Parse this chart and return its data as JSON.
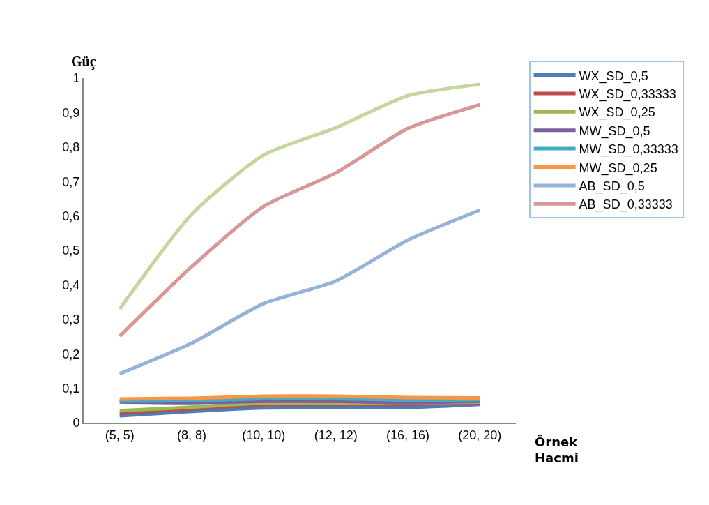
{
  "chart_data": {
    "type": "line",
    "xlabel": "Örnek Hacmi",
    "ylabel": "Güç",
    "categories": [
      "(5, 5)",
      "(8, 8)",
      "(10, 10)",
      "(12, 12)",
      "(16, 16)",
      "(20, 20)"
    ],
    "ylim": [
      0,
      1
    ],
    "yticks": [
      0,
      {
        "value": 0.1,
        "label": "0,1"
      },
      {
        "value": 0.2,
        "label": "0,2"
      },
      {
        "value": 0.3,
        "label": "0,3"
      },
      {
        "value": 0.4,
        "label": "0,4"
      },
      {
        "value": 0.5,
        "label": "0,5"
      },
      {
        "value": 0.6,
        "label": "0,6"
      },
      {
        "value": 0.7,
        "label": "0,7"
      },
      {
        "value": 0.8,
        "label": "0,8"
      },
      {
        "value": 0.9,
        "label": "0,9"
      },
      1
    ],
    "grid": false,
    "legend": "right",
    "marker": "none",
    "line_style": "solid",
    "series": [
      {
        "name": "WX_SD_0,5",
        "color": "#4a7ebb",
        "values": [
          0.02,
          0.033,
          0.043,
          0.044,
          0.044,
          0.053
        ]
      },
      {
        "name": "WX_SD_0,33333",
        "color": "#be4b48",
        "values": [
          0.028,
          0.04,
          0.052,
          0.053,
          0.053,
          0.058
        ]
      },
      {
        "name": "WX_SD_0,25",
        "color": "#98b954",
        "values": [
          0.035,
          0.045,
          0.057,
          0.056,
          0.057,
          0.06
        ]
      },
      {
        "name": "MW_SD_0,5",
        "color": "#7d5fa0",
        "values": [
          0.06,
          0.058,
          0.062,
          0.062,
          0.058,
          0.062
        ]
      },
      {
        "name": "MW_SD_0,33333",
        "color": "#46aac5",
        "values": [
          0.063,
          0.064,
          0.07,
          0.07,
          0.065,
          0.067
        ]
      },
      {
        "name": "MW_SD_0,25",
        "color": "#f79646",
        "values": [
          0.069,
          0.071,
          0.077,
          0.077,
          0.073,
          0.072
        ]
      },
      {
        "name": "AB_SD_0,5",
        "color": "#95b3d7",
        "values": [
          0.142,
          0.231,
          0.346,
          0.411,
          0.53,
          0.617
        ]
      },
      {
        "name": "AB_SD_0,33333",
        "color": "#d99694",
        "values": [
          0.251,
          0.453,
          0.628,
          0.725,
          0.854,
          0.923
        ]
      },
      {
        "color": "#c3d69b",
        "values": [
          0.33,
          0.605,
          0.777,
          0.856,
          0.949,
          0.982
        ]
      }
    ]
  }
}
